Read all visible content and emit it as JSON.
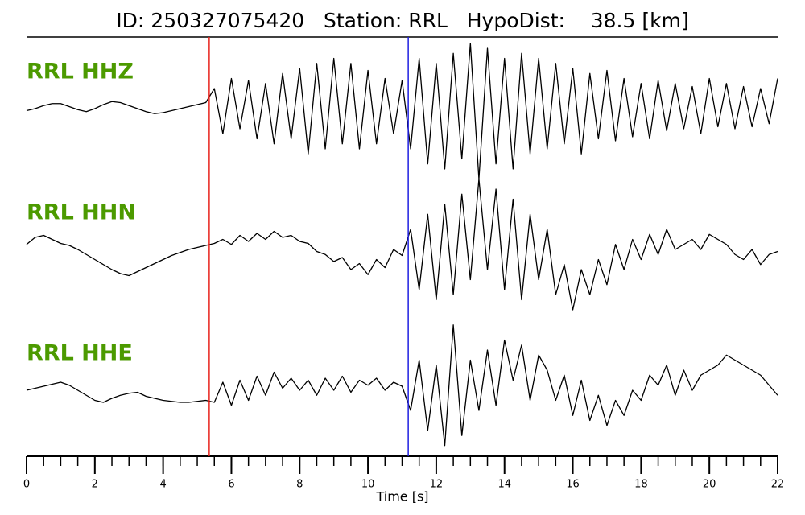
{
  "chart_data": {
    "type": "line",
    "title": "ID: 250327075420   Station: RRL   HypoDist:    38.5 [km]",
    "xlabel": "Time [s]",
    "xlim": [
      0,
      22
    ],
    "xticks": [
      0,
      2,
      4,
      6,
      8,
      10,
      12,
      14,
      16,
      18,
      20,
      22
    ],
    "xminorticks": [
      0,
      0.5,
      1,
      1.5,
      2,
      2.5,
      3,
      3.5,
      4,
      4.5,
      5,
      5.5,
      6,
      6.5,
      7,
      7.5,
      8,
      8.5,
      9,
      9.5,
      10,
      10.5,
      11,
      11.5,
      12,
      12.5,
      13,
      13.5,
      14,
      14.5,
      15,
      15.5,
      16,
      16.5,
      17,
      17.5,
      18,
      18.5,
      19,
      19.5,
      20,
      20.5,
      21,
      21.5,
      22
    ],
    "ylim": [
      -70,
      70
    ],
    "label_color": "#4c9a00",
    "markers": [
      {
        "x": 5.35,
        "color": "#e8221b"
      },
      {
        "x": 11.18,
        "color": "#1f1fe0"
      }
    ],
    "x": [
      0,
      0.25,
      0.5,
      0.75,
      1,
      1.25,
      1.5,
      1.75,
      2,
      2.25,
      2.5,
      2.75,
      3,
      3.25,
      3.5,
      3.75,
      4,
      4.25,
      4.5,
      4.75,
      5,
      5.25,
      5.5,
      5.75,
      6,
      6.25,
      6.5,
      6.75,
      7,
      7.25,
      7.5,
      7.75,
      8,
      8.25,
      8.5,
      8.75,
      9,
      9.25,
      9.5,
      9.75,
      10,
      10.25,
      10.5,
      10.75,
      11,
      11.25,
      11.5,
      11.75,
      12,
      12.25,
      12.5,
      12.75,
      13,
      13.25,
      13.5,
      13.75,
      14,
      14.25,
      14.5,
      14.75,
      15,
      15.25,
      15.5,
      15.75,
      16,
      16.25,
      16.5,
      16.75,
      17,
      17.25,
      17.5,
      17.75,
      18,
      18.25,
      18.5,
      18.75,
      19,
      19.25,
      19.5,
      19.75,
      20,
      20.25,
      20.5,
      20.75,
      21,
      21.25,
      21.5,
      21.75,
      22
    ],
    "series": [
      {
        "name": "RRL HHZ",
        "color": "#000000",
        "values": [
          -2,
          0,
          3,
          5,
          5,
          2,
          -1,
          -3,
          0,
          4,
          7,
          6,
          3,
          0,
          -3,
          -5,
          -4,
          -2,
          0,
          2,
          4,
          6,
          20,
          -25,
          30,
          -20,
          28,
          -30,
          25,
          -35,
          35,
          -30,
          40,
          -45,
          45,
          -40,
          50,
          -35,
          45,
          -40,
          38,
          -35,
          30,
          -25,
          28,
          -40,
          50,
          -55,
          45,
          -60,
          55,
          -50,
          65,
          -70,
          60,
          -55,
          50,
          -60,
          55,
          -45,
          50,
          -40,
          45,
          -35,
          40,
          -45,
          35,
          -30,
          38,
          -32,
          30,
          -28,
          25,
          -30,
          28,
          -22,
          25,
          -20,
          22,
          -25,
          30,
          -18,
          25,
          -20,
          22,
          -18,
          20,
          -15,
          30
        ]
      },
      {
        "name": "RRL HHN",
        "color": "#000000",
        "values": [
          5,
          12,
          14,
          10,
          6,
          4,
          0,
          -5,
          -10,
          -15,
          -20,
          -24,
          -26,
          -22,
          -18,
          -14,
          -10,
          -6,
          -3,
          0,
          2,
          4,
          6,
          10,
          5,
          14,
          8,
          16,
          10,
          18,
          12,
          14,
          8,
          6,
          -2,
          -5,
          -12,
          -8,
          -20,
          -14,
          -25,
          -10,
          -18,
          0,
          -6,
          20,
          -40,
          35,
          -50,
          45,
          -45,
          55,
          -30,
          70,
          -20,
          60,
          -40,
          50,
          -50,
          35,
          -30,
          20,
          -45,
          -15,
          -60,
          -20,
          -45,
          -10,
          -35,
          5,
          -20,
          10,
          -10,
          15,
          -5,
          20,
          0,
          5,
          10,
          0,
          15,
          10,
          5,
          -5,
          -10,
          0,
          -15,
          -5,
          -2
        ]
      },
      {
        "name": "RRL HHE",
        "color": "#000000",
        "values": [
          0,
          2,
          4,
          6,
          8,
          5,
          0,
          -5,
          -10,
          -12,
          -8,
          -5,
          -3,
          -2,
          -6,
          -8,
          -10,
          -11,
          -12,
          -12,
          -11,
          -10,
          -12,
          8,
          -15,
          10,
          -10,
          14,
          -5,
          18,
          2,
          12,
          0,
          10,
          -5,
          12,
          0,
          14,
          -2,
          10,
          5,
          12,
          0,
          8,
          4,
          -20,
          30,
          -40,
          25,
          -55,
          65,
          -45,
          30,
          -20,
          40,
          -15,
          50,
          10,
          45,
          -10,
          35,
          20,
          -10,
          15,
          -25,
          10,
          -30,
          -5,
          -35,
          -10,
          -25,
          0,
          -10,
          15,
          5,
          25,
          -5,
          20,
          0,
          15,
          20,
          25,
          35,
          30,
          25,
          20,
          15,
          5,
          -5
        ]
      }
    ]
  }
}
